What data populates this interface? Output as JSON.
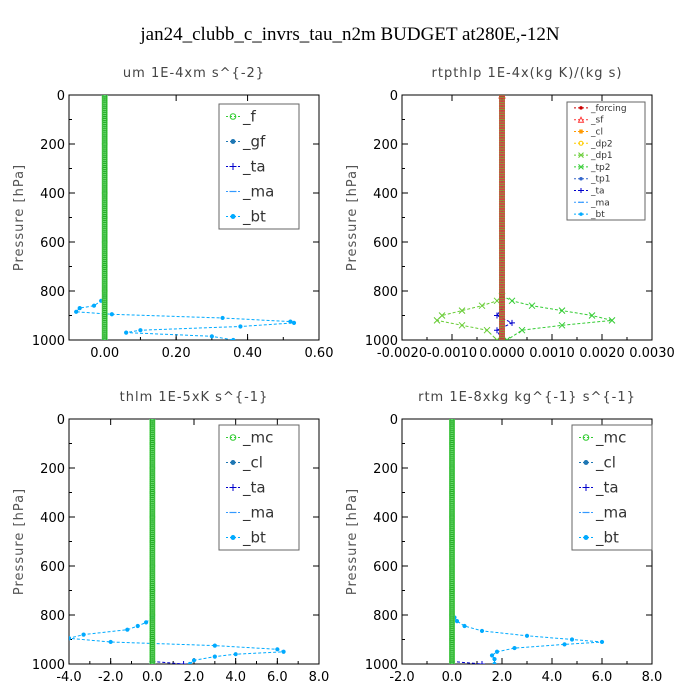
{
  "figure_title": "jan24_clubb_c_invrs_tau_n2m  BUDGET at280E,-12N",
  "chart_data": [
    {
      "type": "line",
      "title": "um  1E-4xm s^{-2}",
      "ylabel": "Pressure [hPa]",
      "xlim": [
        -0.1,
        0.6
      ],
      "ylim": [
        1000,
        0
      ],
      "xticks": [
        "0.00",
        "0.20",
        "0.40",
        "0.60"
      ],
      "xtick_values": [
        0.0,
        0.2,
        0.4,
        0.6
      ],
      "yticks": [
        "0",
        "200",
        "400",
        "600",
        "800",
        "1000"
      ],
      "ytick_values": [
        0,
        200,
        400,
        600,
        800,
        1000
      ],
      "legend_style": "large",
      "series": [
        {
          "name": "_f",
          "color": "#33cc33",
          "marker": "circle",
          "points": [
            [
              0,
              0
            ],
            [
              0,
              100
            ],
            [
              0,
              200
            ],
            [
              0,
              300
            ],
            [
              0,
              400
            ],
            [
              0,
              500
            ],
            [
              0,
              600
            ],
            [
              0,
              700
            ],
            [
              0,
              800
            ],
            [
              0,
              900
            ],
            [
              0,
              1000
            ]
          ]
        },
        {
          "name": "_gf",
          "color": "#1f77b4",
          "marker": "dot",
          "points": [
            [
              0,
              0
            ],
            [
              0,
              1000
            ]
          ]
        },
        {
          "name": "_ta",
          "color": "#0000cc",
          "marker": "plus",
          "points": [
            [
              0,
              0
            ],
            [
              0,
              1000
            ]
          ]
        },
        {
          "name": "_ma",
          "color": "#3399ff",
          "marker": "dash",
          "points": [
            [
              0,
              0
            ],
            [
              0,
              1000
            ]
          ]
        },
        {
          "name": "_bt",
          "color": "#00aaff",
          "marker": "dot",
          "points": [
            [
              0,
              820
            ],
            [
              -0.01,
              840
            ],
            [
              -0.03,
              860
            ],
            [
              -0.07,
              870
            ],
            [
              -0.08,
              885
            ],
            [
              0.02,
              895
            ],
            [
              0.33,
              910
            ],
            [
              0.52,
              925
            ],
            [
              0.53,
              930
            ],
            [
              0.38,
              945
            ],
            [
              0.1,
              960
            ],
            [
              0.06,
              970
            ],
            [
              0.3,
              985
            ],
            [
              0.36,
              1000
            ]
          ]
        }
      ]
    },
    {
      "type": "line",
      "title": "rtpthlp  1E-4x(kg K)/(kg s)",
      "ylabel": "Pressure [hPa]",
      "xlim": [
        -0.002,
        0.003
      ],
      "ylim": [
        1000,
        0
      ],
      "xticks": [
        "-0.0020",
        "-0.0010",
        "0.0000",
        "0.0010",
        "0.0020",
        "0.0030"
      ],
      "xtick_values": [
        -0.002,
        -0.001,
        0.0,
        0.001,
        0.002,
        0.003
      ],
      "yticks": [
        "0",
        "200",
        "400",
        "600",
        "800",
        "1000"
      ],
      "ytick_values": [
        0,
        200,
        400,
        600,
        800,
        1000
      ],
      "legend_style": "small",
      "series": [
        {
          "name": "_forcing",
          "color": "#cc0000",
          "marker": "dot",
          "points": [
            [
              0,
              0
            ],
            [
              0,
              1000
            ]
          ]
        },
        {
          "name": "_sf",
          "color": "#ff3333",
          "marker": "triangle",
          "points": [
            [
              0,
              0
            ],
            [
              0,
              1000
            ]
          ]
        },
        {
          "name": "_cl",
          "color": "#ff9900",
          "marker": "star",
          "points": [
            [
              0,
              0
            ],
            [
              0,
              1000
            ]
          ]
        },
        {
          "name": "_dp2",
          "color": "#ffcc00",
          "marker": "circle",
          "points": [
            [
              0,
              0
            ],
            [
              0,
              1000
            ]
          ]
        },
        {
          "name": "_dp1",
          "color": "#66cc33",
          "marker": "cross",
          "points": [
            [
              0,
              820
            ],
            [
              -0.0001,
              840
            ],
            [
              -0.0004,
              860
            ],
            [
              -0.0008,
              880
            ],
            [
              -0.0012,
              900
            ],
            [
              -0.0013,
              920
            ],
            [
              -0.0008,
              940
            ],
            [
              -0.0003,
              960
            ],
            [
              -0.0001,
              1000
            ]
          ]
        },
        {
          "name": "_tp2",
          "color": "#33cc33",
          "marker": "cross",
          "points": [
            [
              0,
              820
            ],
            [
              0.0002,
              840
            ],
            [
              0.0006,
              860
            ],
            [
              0.0012,
              880
            ],
            [
              0.0018,
              900
            ],
            [
              0.0022,
              920
            ],
            [
              0.0012,
              940
            ],
            [
              0.0004,
              960
            ],
            [
              0.0001,
              1000
            ]
          ]
        },
        {
          "name": "_tp1",
          "color": "#3366cc",
          "marker": "dot",
          "points": [
            [
              0,
              0
            ],
            [
              0,
              1000
            ]
          ]
        },
        {
          "name": "_ta",
          "color": "#0000cc",
          "marker": "plus",
          "points": [
            [
              0,
              870
            ],
            [
              -0.0001,
              900
            ],
            [
              0.0002,
              930
            ],
            [
              -0.0001,
              960
            ],
            [
              0,
              1000
            ]
          ]
        },
        {
          "name": "_ma",
          "color": "#3399ff",
          "marker": "dash",
          "points": [
            [
              0,
              0
            ],
            [
              0,
              1000
            ]
          ]
        },
        {
          "name": "_bt",
          "color": "#00aaff",
          "marker": "dot",
          "points": [
            [
              0,
              0
            ],
            [
              0,
              1000
            ]
          ]
        }
      ]
    },
    {
      "type": "line",
      "title": "thlm  1E-5xK s^{-1}",
      "ylabel": "Pressure [hPa]",
      "xlim": [
        -4.0,
        8.0
      ],
      "ylim": [
        1000,
        0
      ],
      "xticks": [
        "-4.0",
        "-2.0",
        "0.0",
        "2.0",
        "4.0",
        "6.0",
        "8.0"
      ],
      "xtick_values": [
        -4.0,
        -2.0,
        0.0,
        2.0,
        4.0,
        6.0,
        8.0
      ],
      "yticks": [
        "0",
        "200",
        "400",
        "600",
        "800",
        "1000"
      ],
      "ytick_values": [
        0,
        200,
        400,
        600,
        800,
        1000
      ],
      "legend_style": "large",
      "series": [
        {
          "name": "_mc",
          "color": "#33cc33",
          "marker": "circle",
          "points": [
            [
              0,
              0
            ],
            [
              0,
              100
            ],
            [
              0,
              200
            ],
            [
              0,
              300
            ],
            [
              0,
              400
            ],
            [
              0,
              500
            ],
            [
              0,
              600
            ],
            [
              0,
              700
            ],
            [
              0,
              800
            ],
            [
              0,
              900
            ],
            [
              0,
              1000
            ]
          ]
        },
        {
          "name": "_cl",
          "color": "#1f77b4",
          "marker": "dot",
          "points": [
            [
              0,
              0
            ],
            [
              0,
              1000
            ]
          ]
        },
        {
          "name": "_ta",
          "color": "#0000cc",
          "marker": "plus",
          "points": [
            [
              0,
              990
            ],
            [
              1.5,
              1000
            ]
          ]
        },
        {
          "name": "_ma",
          "color": "#3399ff",
          "marker": "dash",
          "points": [
            [
              0,
              0
            ],
            [
              0,
              1000
            ]
          ]
        },
        {
          "name": "_bt",
          "color": "#00aaff",
          "marker": "dot",
          "points": [
            [
              0,
              810
            ],
            [
              -0.3,
              830
            ],
            [
              -0.7,
              845
            ],
            [
              -1.2,
              860
            ],
            [
              -3.3,
              880
            ],
            [
              -4.0,
              895
            ],
            [
              -2.0,
              910
            ],
            [
              3.0,
              925
            ],
            [
              6.0,
              940
            ],
            [
              6.3,
              950
            ],
            [
              4.0,
              960
            ],
            [
              3.0,
              970
            ],
            [
              2.0,
              985
            ],
            [
              1.8,
              1000
            ]
          ]
        }
      ]
    },
    {
      "type": "line",
      "title": "rtm  1E-8xkg kg^{-1} s^{-1}",
      "ylabel": "Pressure [hPa]",
      "xlim": [
        -2.0,
        8.0
      ],
      "ylim": [
        1000,
        0
      ],
      "xticks": [
        "-2.0",
        "0.0",
        "2.0",
        "4.0",
        "6.0",
        "8.0"
      ],
      "xtick_values": [
        -2.0,
        0.0,
        2.0,
        4.0,
        6.0,
        8.0
      ],
      "yticks": [
        "0",
        "200",
        "400",
        "600",
        "800",
        "1000"
      ],
      "ytick_values": [
        0,
        200,
        400,
        600,
        800,
        1000
      ],
      "legend_style": "large",
      "series": [
        {
          "name": "_mc",
          "color": "#33cc33",
          "marker": "circle",
          "points": [
            [
              0,
              0
            ],
            [
              0,
              100
            ],
            [
              0,
              200
            ],
            [
              0,
              300
            ],
            [
              0,
              400
            ],
            [
              0,
              500
            ],
            [
              0,
              600
            ],
            [
              0,
              700
            ],
            [
              0,
              800
            ],
            [
              0,
              900
            ],
            [
              0,
              1000
            ]
          ]
        },
        {
          "name": "_cl",
          "color": "#1f77b4",
          "marker": "dot",
          "points": [
            [
              0,
              0
            ],
            [
              0,
              1000
            ]
          ]
        },
        {
          "name": "_ta",
          "color": "#0000cc",
          "marker": "plus",
          "points": [
            [
              0,
              990
            ],
            [
              1.2,
              1000
            ]
          ]
        },
        {
          "name": "_ma",
          "color": "#3399ff",
          "marker": "dash",
          "points": [
            [
              0,
              0
            ],
            [
              0,
              1000
            ]
          ]
        },
        {
          "name": "_bt",
          "color": "#00aaff",
          "marker": "dot",
          "points": [
            [
              0.1,
              810
            ],
            [
              0.2,
              825
            ],
            [
              0.5,
              845
            ],
            [
              1.2,
              865
            ],
            [
              3.0,
              885
            ],
            [
              4.8,
              900
            ],
            [
              6.0,
              910
            ],
            [
              4.5,
              920
            ],
            [
              2.5,
              935
            ],
            [
              1.8,
              950
            ],
            [
              1.6,
              965
            ],
            [
              1.7,
              980
            ],
            [
              1.7,
              1000
            ]
          ]
        }
      ]
    }
  ]
}
